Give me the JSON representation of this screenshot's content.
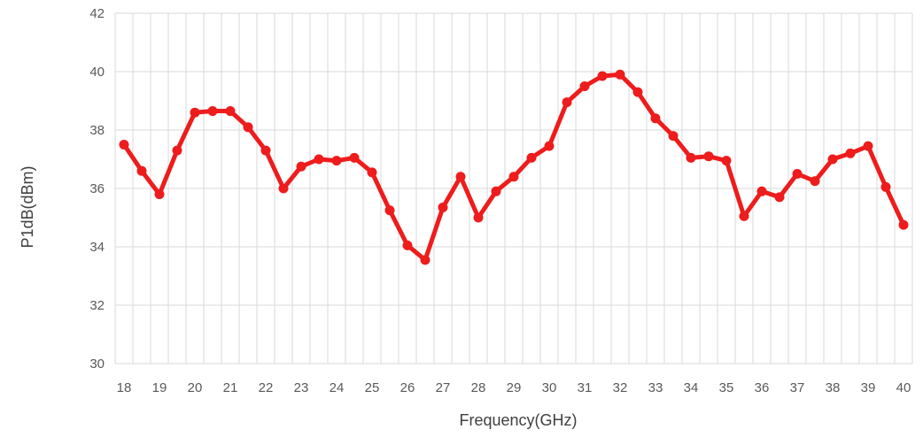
{
  "chart_data": {
    "type": "line",
    "title": "",
    "xlabel": "Frequency(GHz)",
    "ylabel": "P1dB(dBm)",
    "xlim": [
      17.75,
      40.25
    ],
    "ylim": [
      30,
      42
    ],
    "x_ticks": [
      "18",
      "19",
      "20",
      "21",
      "22",
      "23",
      "24",
      "25",
      "26",
      "27",
      "28",
      "29",
      "30",
      "31",
      "32",
      "33",
      "34",
      "35",
      "36",
      "37",
      "38",
      "39",
      "40"
    ],
    "y_ticks": [
      "30",
      "32",
      "34",
      "36",
      "38",
      "40",
      "42"
    ],
    "grid": true,
    "legend": "none",
    "series": [
      {
        "color": "#ee1c1c",
        "x": [
          18,
          18.5,
          19,
          19.5,
          20,
          20.5,
          21,
          21.5,
          22,
          22.5,
          23,
          23.5,
          24,
          24.5,
          25,
          25.5,
          26,
          26.5,
          27,
          27.5,
          28,
          28.5,
          29,
          29.5,
          30,
          30.5,
          31,
          31.5,
          32,
          32.5,
          33,
          33.5,
          34,
          34.5,
          35,
          35.5,
          36,
          36.5,
          37,
          37.5,
          38,
          38.5,
          39,
          39.5,
          40
        ],
        "y": [
          37.5,
          36.6,
          35.8,
          37.3,
          38.6,
          38.65,
          38.65,
          38.1,
          37.3,
          36.0,
          36.75,
          37.0,
          36.95,
          37.05,
          36.55,
          35.25,
          34.05,
          33.55,
          35.35,
          36.4,
          35.0,
          35.9,
          36.4,
          37.05,
          37.45,
          38.95,
          39.5,
          39.85,
          39.9,
          39.3,
          38.4,
          37.8,
          37.05,
          37.1,
          36.95,
          35.05,
          35.9,
          35.7,
          36.5,
          36.25,
          37.0,
          37.2,
          37.45,
          36.05,
          34.75
        ]
      }
    ]
  }
}
